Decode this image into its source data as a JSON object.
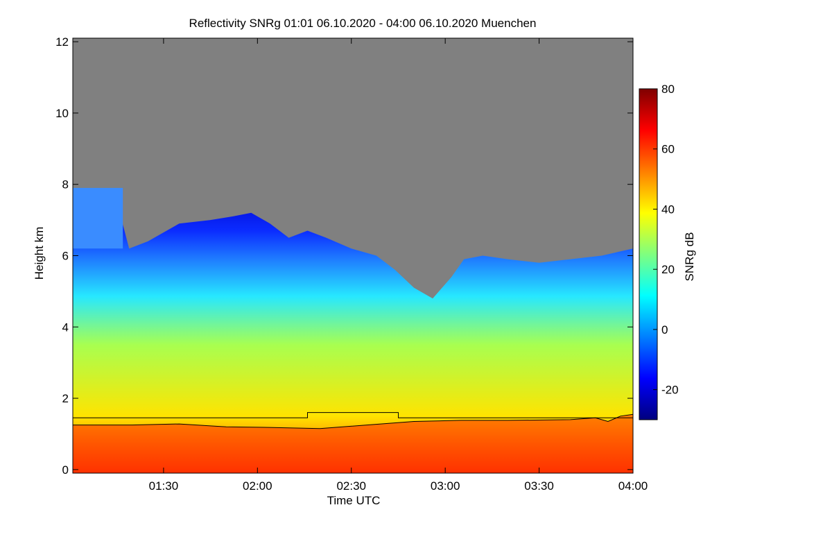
{
  "chart_data": {
    "type": "heatmap",
    "title": "Reflectivity SNRg   01:01 06.10.2020 - 04:00 06.10.2020 Muenchen",
    "xlabel": "Time UTC",
    "ylabel": "Height km",
    "x_ticks": [
      {
        "minutes": 90,
        "label": "01:30"
      },
      {
        "minutes": 120,
        "label": "02:00"
      },
      {
        "minutes": 150,
        "label": "02:30"
      },
      {
        "minutes": 180,
        "label": "03:00"
      },
      {
        "minutes": 210,
        "label": "03:30"
      },
      {
        "minutes": 240,
        "label": "04:00"
      }
    ],
    "xlim_minutes": [
      61,
      240
    ],
    "y_ticks": [
      {
        "value": 0,
        "label": "0"
      },
      {
        "value": 2,
        "label": "2"
      },
      {
        "value": 4,
        "label": "4"
      },
      {
        "value": 6,
        "label": "6"
      },
      {
        "value": 8,
        "label": "8"
      },
      {
        "value": 10,
        "label": "10"
      },
      {
        "value": 12,
        "label": "12"
      }
    ],
    "ylim_km": [
      -0.1,
      12.1
    ],
    "colorbar": {
      "label": "SNRg dB",
      "range": [
        -30,
        80
      ],
      "ticks": [
        {
          "value": -20,
          "label": "-20"
        },
        {
          "value": 0,
          "label": "0"
        },
        {
          "value": 20,
          "label": "20"
        },
        {
          "value": 40,
          "label": "40"
        },
        {
          "value": 60,
          "label": "60"
        },
        {
          "value": 80,
          "label": "80"
        }
      ],
      "colors": [
        "#00007f",
        "#0000ff",
        "#007fff",
        "#00ffff",
        "#7fff7f",
        "#ffff00",
        "#ff7f00",
        "#ff0000",
        "#7f0000"
      ]
    },
    "no_signal_color": "#808080",
    "cloud_top_km": [
      {
        "t": 61,
        "h": 7.9
      },
      {
        "t": 66,
        "h": 7.7
      },
      {
        "t": 72,
        "h": 7.7
      },
      {
        "t": 76,
        "h": 7.2
      },
      {
        "t": 79,
        "h": 6.2
      },
      {
        "t": 85,
        "h": 6.4
      },
      {
        "t": 95,
        "h": 6.9
      },
      {
        "t": 105,
        "h": 7.0
      },
      {
        "t": 112,
        "h": 7.1
      },
      {
        "t": 118,
        "h": 7.2
      },
      {
        "t": 124,
        "h": 6.9
      },
      {
        "t": 130,
        "h": 6.5
      },
      {
        "t": 136,
        "h": 6.7
      },
      {
        "t": 142,
        "h": 6.5
      },
      {
        "t": 150,
        "h": 6.2
      },
      {
        "t": 158,
        "h": 6.0
      },
      {
        "t": 164,
        "h": 5.6
      },
      {
        "t": 170,
        "h": 5.1
      },
      {
        "t": 176,
        "h": 4.8
      },
      {
        "t": 182,
        "h": 5.4
      },
      {
        "t": 186,
        "h": 5.9
      },
      {
        "t": 192,
        "h": 6.0
      },
      {
        "t": 200,
        "h": 5.9
      },
      {
        "t": 210,
        "h": 5.8
      },
      {
        "t": 220,
        "h": 5.9
      },
      {
        "t": 230,
        "h": 6.0
      },
      {
        "t": 240,
        "h": 6.2
      }
    ],
    "upper_layer_km": {
      "t_start": 61,
      "t_end": 77,
      "base": 6.2,
      "top": 7.9
    },
    "cloud_base_line_km": [
      {
        "t": 61,
        "h": 1.25
      },
      {
        "t": 80,
        "h": 1.25
      },
      {
        "t": 95,
        "h": 1.28
      },
      {
        "t": 110,
        "h": 1.2
      },
      {
        "t": 125,
        "h": 1.18
      },
      {
        "t": 140,
        "h": 1.15
      },
      {
        "t": 155,
        "h": 1.25
      },
      {
        "t": 170,
        "h": 1.35
      },
      {
        "t": 185,
        "h": 1.38
      },
      {
        "t": 200,
        "h": 1.38
      },
      {
        "t": 220,
        "h": 1.4
      },
      {
        "t": 228,
        "h": 1.45
      },
      {
        "t": 232,
        "h": 1.35
      },
      {
        "t": 236,
        "h": 1.5
      },
      {
        "t": 240,
        "h": 1.55
      }
    ],
    "mixing_layer_line_km": [
      {
        "t": 61,
        "h": 1.45
      },
      {
        "t": 136,
        "h": 1.45
      },
      {
        "t": 136,
        "h": 1.6
      },
      {
        "t": 165,
        "h": 1.6
      },
      {
        "t": 165,
        "h": 1.45
      },
      {
        "t": 240,
        "h": 1.45
      }
    ]
  }
}
